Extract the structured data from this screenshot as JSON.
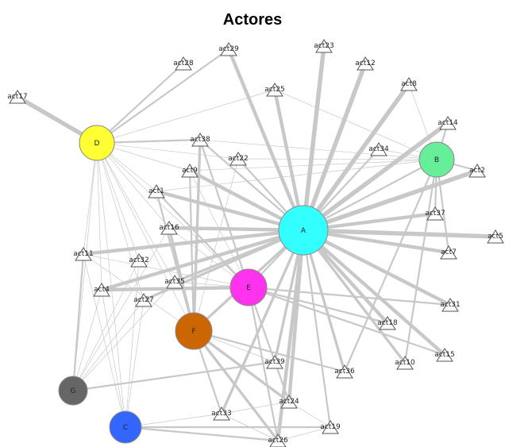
{
  "title": "Actores",
  "hubs": [
    {
      "id": "A",
      "label": "A",
      "color": "#33ffff"
    },
    {
      "id": "B",
      "label": "B",
      "color": "#66ee99"
    },
    {
      "id": "C",
      "label": "C",
      "color": "#3366ff"
    },
    {
      "id": "D",
      "label": "D",
      "color": "#ffff33"
    },
    {
      "id": "E",
      "label": "E",
      "color": "#ff33ee"
    },
    {
      "id": "F",
      "label": "F",
      "color": "#cc6600"
    },
    {
      "id": "G",
      "label": "G",
      "color": "#666666"
    }
  ],
  "actors": [
    "act1",
    "act2",
    "act4",
    "act5",
    "act7",
    "act8",
    "act9",
    "act10",
    "act11",
    "act12",
    "act14",
    "act15",
    "act16",
    "act17",
    "act18",
    "act19",
    "act22",
    "act23",
    "act24",
    "act25",
    "act26",
    "act27",
    "act28",
    "act29",
    "act31",
    "act32",
    "act33",
    "act34",
    "act35",
    "act36",
    "act37",
    "act38",
    "act39"
  ],
  "edges": [
    [
      "A",
      "act23",
      5
    ],
    [
      "A",
      "act12",
      5
    ],
    [
      "A",
      "act8",
      5
    ],
    [
      "A",
      "act14",
      5
    ],
    [
      "A",
      "act2",
      5
    ],
    [
      "A",
      "act5",
      5
    ],
    [
      "A",
      "act37",
      4
    ],
    [
      "A",
      "act7",
      4
    ],
    [
      "A",
      "act31",
      4
    ],
    [
      "A",
      "act18",
      4
    ],
    [
      "A",
      "act15",
      4
    ],
    [
      "A",
      "act10",
      3
    ],
    [
      "A",
      "act36",
      3
    ],
    [
      "A",
      "act24",
      4
    ],
    [
      "A",
      "act26",
      4
    ],
    [
      "A",
      "act33",
      3
    ],
    [
      "A",
      "act19",
      2
    ],
    [
      "A",
      "act39",
      3
    ],
    [
      "A",
      "act11",
      4
    ],
    [
      "A",
      "act4",
      4
    ],
    [
      "A",
      "act29",
      4
    ],
    [
      "A",
      "act25",
      4
    ],
    [
      "A",
      "act9",
      4
    ],
    [
      "A",
      "act1",
      4
    ],
    [
      "A",
      "act16",
      4
    ],
    [
      "A",
      "act22",
      2
    ],
    [
      "A",
      "act35",
      3
    ],
    [
      "A",
      "act27",
      3
    ],
    [
      "A",
      "act34",
      2
    ],
    [
      "A",
      "act38",
      2
    ],
    [
      "A",
      "B",
      2
    ],
    [
      "A",
      "F",
      3
    ],
    [
      "A",
      "E",
      2
    ],
    [
      "B",
      "act14",
      2
    ],
    [
      "B",
      "act2",
      2
    ],
    [
      "B",
      "act37",
      2
    ],
    [
      "B",
      "act7",
      2
    ],
    [
      "B",
      "act36",
      2
    ],
    [
      "B",
      "act10",
      2
    ],
    [
      "B",
      "act25",
      1
    ],
    [
      "B",
      "act22",
      1
    ],
    [
      "B",
      "act9",
      1
    ],
    [
      "B",
      "act38",
      1
    ],
    [
      "B",
      "act34",
      1
    ],
    [
      "B",
      "act8",
      1
    ],
    [
      "B",
      "act1",
      1
    ],
    [
      "D",
      "act17",
      5
    ],
    [
      "D",
      "act28",
      2
    ],
    [
      "D",
      "act29",
      2
    ],
    [
      "D",
      "act25",
      1
    ],
    [
      "D",
      "act38",
      2
    ],
    [
      "D",
      "act22",
      1
    ],
    [
      "D",
      "act9",
      1
    ],
    [
      "D",
      "act1",
      1
    ],
    [
      "D",
      "act16",
      1
    ],
    [
      "D",
      "act11",
      1
    ],
    [
      "D",
      "act32",
      1
    ],
    [
      "D",
      "act4",
      1
    ],
    [
      "D",
      "act35",
      1
    ],
    [
      "D",
      "act27",
      1
    ],
    [
      "D",
      "C",
      1
    ],
    [
      "D",
      "G",
      1
    ],
    [
      "D",
      "F",
      1
    ],
    [
      "D",
      "E",
      1
    ],
    [
      "E",
      "act4",
      4
    ],
    [
      "E",
      "act31",
      2
    ],
    [
      "E",
      "act18",
      2
    ],
    [
      "E",
      "act15",
      2
    ],
    [
      "E",
      "act24",
      2
    ],
    [
      "E",
      "act38",
      2
    ],
    [
      "E",
      "act1",
      2
    ],
    [
      "E",
      "act26",
      2
    ],
    [
      "E",
      "act16",
      1
    ],
    [
      "E",
      "act9",
      1
    ],
    [
      "E",
      "act11",
      1
    ],
    [
      "E",
      "act35",
      1
    ],
    [
      "F",
      "act38",
      3
    ],
    [
      "F",
      "act16",
      3
    ],
    [
      "F",
      "act24",
      3
    ],
    [
      "F",
      "act26",
      3
    ],
    [
      "F",
      "act36",
      2
    ],
    [
      "F",
      "act33",
      2
    ],
    [
      "F",
      "act9",
      2
    ],
    [
      "F",
      "act1",
      2
    ],
    [
      "F",
      "act11",
      1
    ],
    [
      "F",
      "act22",
      1
    ],
    [
      "F",
      "act39",
      1
    ],
    [
      "G",
      "act11",
      2
    ],
    [
      "G",
      "act39",
      2
    ],
    [
      "G",
      "act35",
      1
    ],
    [
      "G",
      "act4",
      1
    ],
    [
      "G",
      "act32",
      1
    ],
    [
      "G",
      "act16",
      1
    ],
    [
      "G",
      "act27",
      1
    ],
    [
      "C",
      "act26",
      2
    ],
    [
      "C",
      "act19",
      2
    ],
    [
      "C",
      "act33",
      1
    ],
    [
      "C",
      "act4",
      1
    ],
    [
      "C",
      "act27",
      1
    ],
    [
      "C",
      "act11",
      1
    ],
    [
      "C",
      "act32",
      1
    ],
    [
      "act24",
      "act33",
      1
    ],
    [
      "act26",
      "act19",
      1
    ],
    [
      "act24",
      "act19",
      1
    ],
    [
      "act33",
      "act26",
      1
    ],
    [
      "act39",
      "act24",
      1
    ]
  ]
}
